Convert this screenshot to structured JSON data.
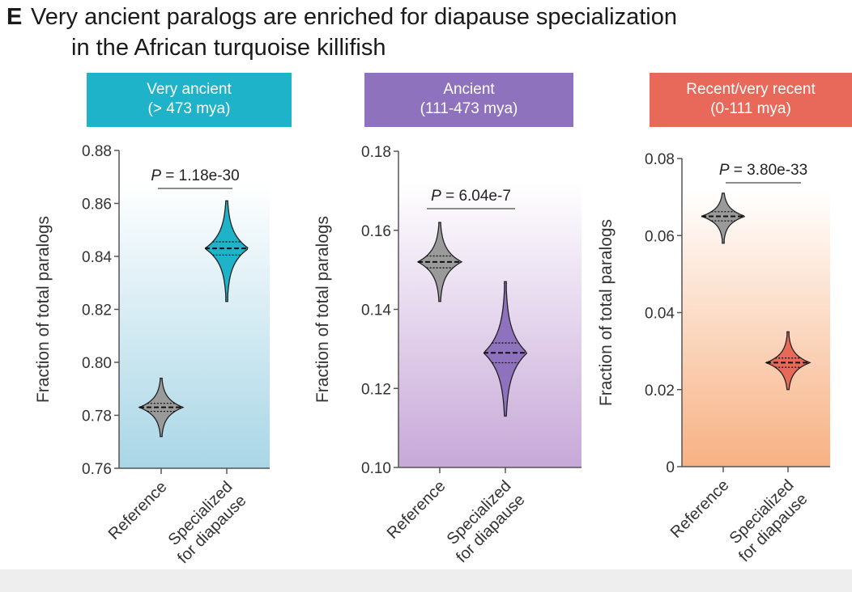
{
  "figure": {
    "panel_letter": "E",
    "title_line1": "Very ancient paralogs are enriched for diapause specialization",
    "title_line2": "in the African turquoise killifish"
  },
  "chart_data": [
    {
      "type": "violin",
      "header": [
        "Very ancient",
        "(> 473 mya)"
      ],
      "header_color": "#1eb3c8",
      "background_gradient": [
        "#ffffff",
        "#a9d6e6"
      ],
      "ylabel": "Fraction of total paralogs",
      "ylim": [
        0.76,
        0.88
      ],
      "yticks": [
        "0.76",
        "0.78",
        "0.80",
        "0.82",
        "0.84",
        "0.86",
        "0.88"
      ],
      "categories": [
        [
          "Reference"
        ],
        [
          "Specialized",
          "for diapause"
        ]
      ],
      "p_value_label": "P",
      "p_value_text": " = 1.18e-30",
      "violins": [
        {
          "median": 0.783,
          "q1": 0.7815,
          "q3": 0.7845,
          "min": 0.772,
          "max": 0.794,
          "color": "#9a9a9a"
        },
        {
          "median": 0.843,
          "q1": 0.8405,
          "q3": 0.8455,
          "min": 0.823,
          "max": 0.861,
          "color": "#1eb3c8"
        }
      ]
    },
    {
      "type": "violin",
      "header": [
        "Ancient",
        "(111-473 mya)"
      ],
      "header_color": "#8f72bd",
      "background_gradient": [
        "#ffffff",
        "#c7a8d8"
      ],
      "ylabel": "Fraction of total paralogs",
      "ylim": [
        0.1,
        0.18
      ],
      "yticks": [
        "0.10",
        "0.12",
        "0.14",
        "0.16",
        "0.18"
      ],
      "categories": [
        [
          "Reference"
        ],
        [
          "Specialized",
          "for diapause"
        ]
      ],
      "p_value_label": "P",
      "p_value_text": " = 6.04e-7",
      "violins": [
        {
          "median": 0.152,
          "q1": 0.1505,
          "q3": 0.1535,
          "min": 0.142,
          "max": 0.162,
          "color": "#9a9a9a"
        },
        {
          "median": 0.129,
          "q1": 0.1265,
          "q3": 0.1315,
          "min": 0.113,
          "max": 0.147,
          "color": "#8f72bd"
        }
      ]
    },
    {
      "type": "violin",
      "header": [
        "Recent/very recent",
        "(0-111 mya)"
      ],
      "header_color": "#e8685a",
      "background_gradient": [
        "#ffffff",
        "#f7b183"
      ],
      "ylabel": "Fraction of total paralogs",
      "ylim": [
        0,
        0.08
      ],
      "yticks": [
        "0",
        "0.02",
        "0.04",
        "0.06",
        "0.08"
      ],
      "categories": [
        [
          "Reference"
        ],
        [
          "Specialized",
          "for diapause"
        ]
      ],
      "p_value_label": "P",
      "p_value_text": " = 3.80e-33",
      "violins": [
        {
          "median": 0.065,
          "q1": 0.0638,
          "q3": 0.0662,
          "min": 0.058,
          "max": 0.071,
          "color": "#9a9a9a"
        },
        {
          "median": 0.027,
          "q1": 0.0258,
          "q3": 0.0282,
          "min": 0.02,
          "max": 0.035,
          "color": "#e8685a"
        }
      ]
    }
  ]
}
